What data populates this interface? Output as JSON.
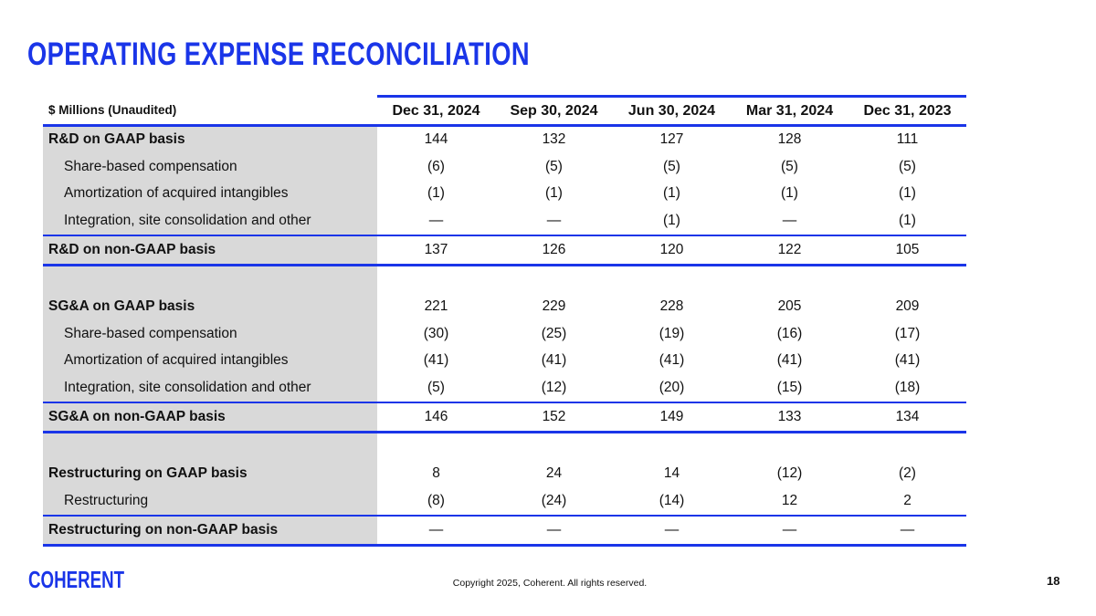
{
  "title": "OPERATING EXPENSE RECONCILIATION",
  "table": {
    "unit_label": "$ Millions (Unaudited)",
    "columns": [
      "Dec 31, 2024",
      "Sep 30, 2024",
      "Jun 30, 2024",
      "Mar 31, 2024",
      "Dec 31, 2023"
    ],
    "sections": [
      {
        "rows": [
          {
            "label": "R&D on GAAP basis",
            "values": [
              "144",
              "132",
              "127",
              "128",
              "111"
            ]
          },
          {
            "label": "Share-based compensation",
            "values": [
              "(6)",
              "(5)",
              "(5)",
              "(5)",
              "(5)"
            ]
          },
          {
            "label": "Amortization of acquired intangibles",
            "values": [
              "(1)",
              "(1)",
              "(1)",
              "(1)",
              "(1)"
            ]
          },
          {
            "label": "Integration, site consolidation and other",
            "values": [
              "—",
              "—",
              "(1)",
              "—",
              "(1)"
            ]
          }
        ],
        "total": {
          "label": "R&D on non-GAAP basis",
          "values": [
            "137",
            "126",
            "120",
            "122",
            "105"
          ]
        }
      },
      {
        "rows": [
          {
            "label": "SG&A on GAAP basis",
            "values": [
              "221",
              "229",
              "228",
              "205",
              "209"
            ]
          },
          {
            "label": "Share-based compensation",
            "values": [
              "(30)",
              "(25)",
              "(19)",
              "(16)",
              "(17)"
            ]
          },
          {
            "label": "Amortization of acquired intangibles",
            "values": [
              "(41)",
              "(41)",
              "(41)",
              "(41)",
              "(41)"
            ]
          },
          {
            "label": "Integration, site consolidation and other",
            "values": [
              "(5)",
              "(12)",
              "(20)",
              "(15)",
              "(18)"
            ]
          }
        ],
        "total": {
          "label": "SG&A on non-GAAP basis",
          "values": [
            "146",
            "152",
            "149",
            "133",
            "134"
          ]
        }
      },
      {
        "rows": [
          {
            "label": "Restructuring on GAAP basis",
            "values": [
              "8",
              "24",
              "14",
              "(12)",
              "(2)"
            ]
          },
          {
            "label": "Restructuring",
            "values": [
              "(8)",
              "(24)",
              "(14)",
              "12",
              "2"
            ]
          }
        ],
        "total": {
          "label": "Restructuring on non-GAAP basis",
          "values": [
            "—",
            "—",
            "—",
            "—",
            "—"
          ]
        }
      }
    ]
  },
  "footer": {
    "logo": "COHERENT",
    "copyright": "Copyright 2025, Coherent. All rights reserved.",
    "page_number": "18"
  },
  "colors": {
    "accent": "#1a35e8",
    "label_bg": "#d9d9d9"
  }
}
